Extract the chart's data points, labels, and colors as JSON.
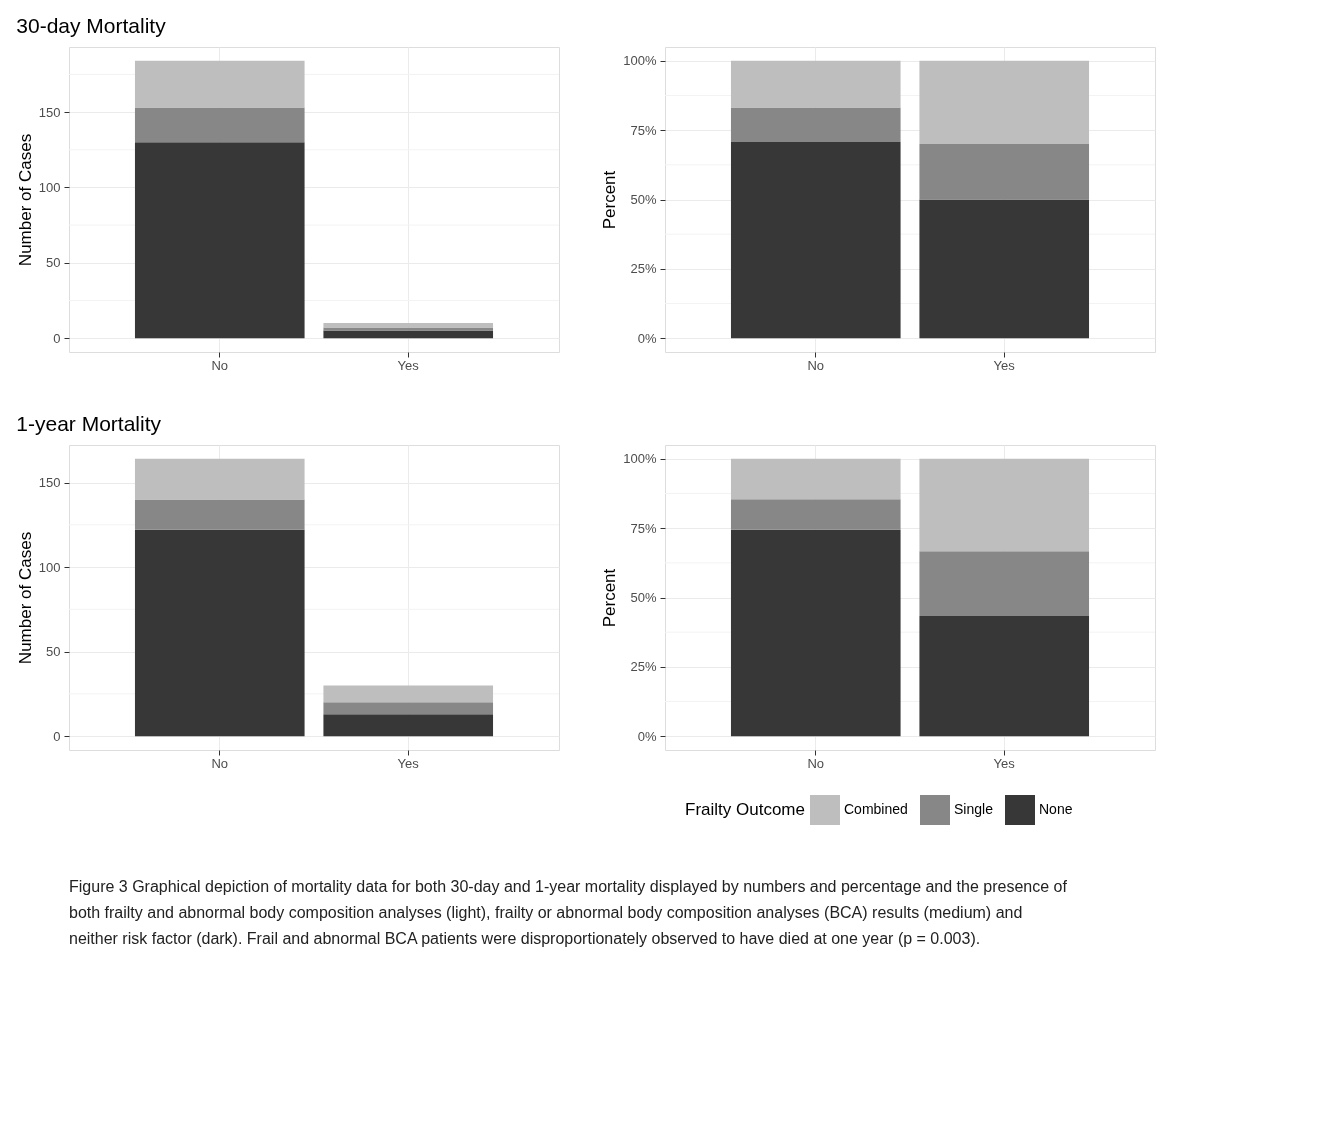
{
  "chart_data": [
    {
      "type": "bar",
      "title": "30-day Mortality",
      "ylabel": "Number of Cases",
      "categories": [
        "No",
        "Yes"
      ],
      "stacked": true,
      "legend": false,
      "grid": true,
      "series": [
        {
          "color": "#373737",
          "values": [
            130,
            5
          ]
        },
        {
          "color": "#878787",
          "values": [
            23,
            2
          ]
        },
        {
          "color": "#bebebe",
          "values": [
            31,
            3
          ]
        }
      ],
      "ylim": [
        -9.2,
        193.2
      ],
      "yticks": [
        0,
        {
          "value": 25,
          "label": null
        },
        50,
        {
          "value": 75,
          "label": null
        },
        100,
        {
          "value": 125,
          "label": null
        },
        150,
        {
          "value": 175,
          "label": null
        }
      ]
    },
    {
      "type": "bar",
      "ylabel": "Percent",
      "categories": [
        "No",
        "Yes"
      ],
      "stacked": true,
      "legend": false,
      "grid": true,
      "series": [
        {
          "color": "#373737",
          "values": [
            70.7,
            50
          ]
        },
        {
          "color": "#878787",
          "values": [
            12.5,
            20
          ]
        },
        {
          "color": "#bebebe",
          "values": [
            16.8,
            30
          ]
        }
      ],
      "ylim": [
        -5,
        105
      ],
      "yticks": [
        {
          "value": 0,
          "label": "0%"
        },
        {
          "value": 12.5,
          "label": null
        },
        {
          "value": 25,
          "label": "25%"
        },
        {
          "value": 37.5,
          "label": null
        },
        {
          "value": 50,
          "label": "50%"
        },
        {
          "value": 62.5,
          "label": null
        },
        {
          "value": 75,
          "label": "75%"
        },
        {
          "value": 87.5,
          "label": null
        },
        {
          "value": 100,
          "label": "100%"
        }
      ]
    },
    {
      "type": "bar",
      "title": "1-year Mortality",
      "ylabel": "Number of Cases",
      "categories": [
        "No",
        "Yes"
      ],
      "stacked": true,
      "legend": false,
      "grid": true,
      "series": [
        {
          "color": "#373737",
          "values": [
            122,
            13
          ]
        },
        {
          "color": "#878787",
          "values": [
            18,
            7
          ]
        },
        {
          "color": "#bebebe",
          "values": [
            24,
            10
          ]
        }
      ],
      "ylim": [
        -8.2,
        172.2
      ],
      "yticks": [
        0,
        {
          "value": 25,
          "label": null
        },
        50,
        {
          "value": 75,
          "label": null
        },
        100,
        {
          "value": 125,
          "label": null
        },
        150
      ]
    },
    {
      "type": "bar",
      "ylabel": "Percent",
      "categories": [
        "No",
        "Yes"
      ],
      "stacked": true,
      "legend": "bottom right",
      "legend_title": "Frailty Outcome",
      "grid": true,
      "series": [
        {
          "name": "None",
          "color": "#373737",
          "values": [
            74.4,
            43.3
          ]
        },
        {
          "name": "Single",
          "color": "#878787",
          "values": [
            11.0,
            23.4
          ]
        },
        {
          "name": "Combined",
          "color": "#bebebe",
          "values": [
            14.6,
            33.3
          ]
        }
      ],
      "ylim": [
        -5,
        105
      ],
      "yticks": [
        {
          "value": 0,
          "label": "0%"
        },
        {
          "value": 12.5,
          "label": null
        },
        {
          "value": 25,
          "label": "25%"
        },
        {
          "value": 37.5,
          "label": null
        },
        {
          "value": 50,
          "label": "50%"
        },
        {
          "value": 62.5,
          "label": null
        },
        {
          "value": 75,
          "label": "75%"
        },
        {
          "value": 87.5,
          "label": null
        },
        {
          "value": 100,
          "label": "100%"
        }
      ],
      "annotations": [
        "Figure 3 Graphical depiction of mortality data for both 30-day and 1-year mortality displayed by numbers and percentage and the presence of both frailty and abnormal body composition analyses (light), frailty or abnormal body composition analyses (BCA) results (medium) and neither risk factor (dark). Frail and abnormal BCA patients were disproportionately observed to have died at one year (p = 0.003)."
      ]
    }
  ]
}
